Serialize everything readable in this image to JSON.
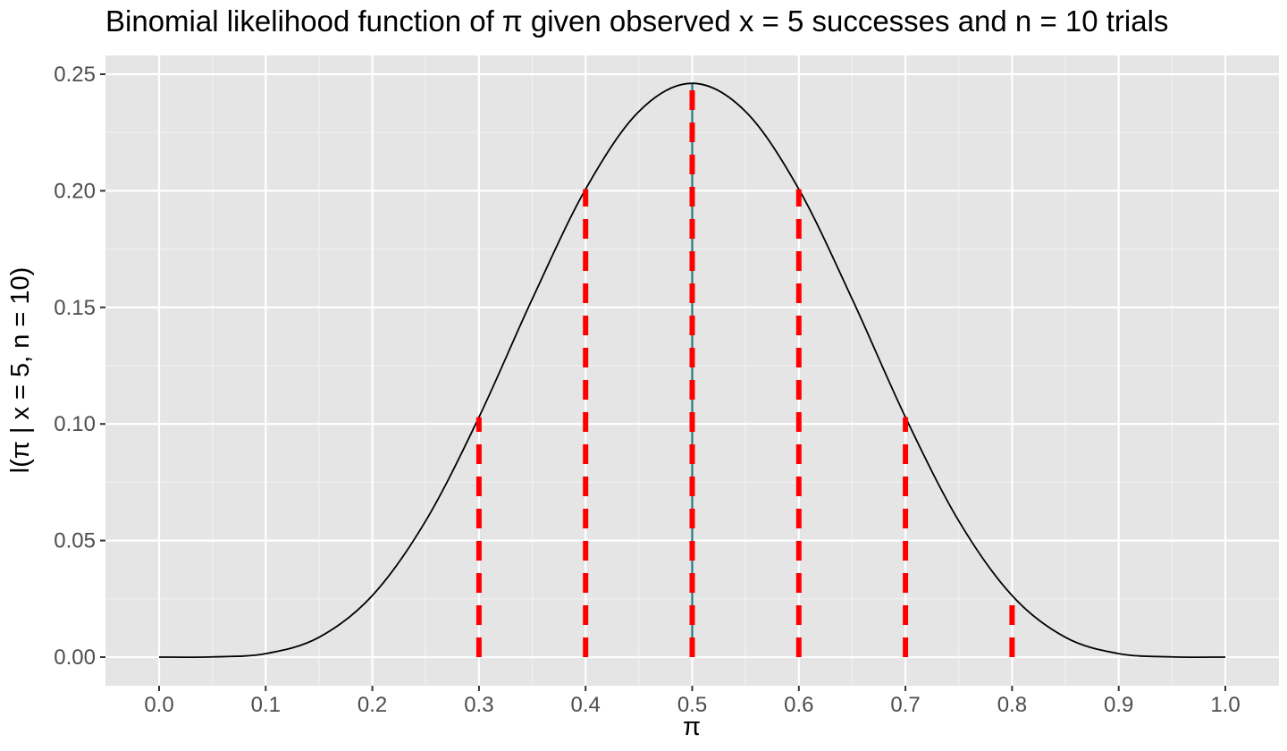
{
  "chart_data": {
    "type": "line",
    "title": "Binomial likelihood function of π given observed x = 5 successes and n = 10 trials",
    "xlabel": "π",
    "ylabel": "l(π | x = 5, n = 10)",
    "xlim": [
      0,
      1
    ],
    "ylim": [
      0,
      0.25
    ],
    "x_ticks": [
      "0.0",
      "0.1",
      "0.2",
      "0.3",
      "0.4",
      "0.5",
      "0.6",
      "0.7",
      "0.8",
      "0.9",
      "1.0"
    ],
    "y_ticks": [
      "0.00",
      "0.05",
      "0.10",
      "0.15",
      "0.20",
      "0.25"
    ],
    "grid": true,
    "series": [
      {
        "color": "#000000",
        "x": [
          0.0,
          0.05,
          0.1,
          0.15,
          0.2,
          0.25,
          0.3,
          0.35,
          0.4,
          0.45,
          0.5,
          0.55,
          0.6,
          0.65,
          0.7,
          0.75,
          0.8,
          0.85,
          0.9,
          0.95,
          1.0
        ],
        "y": [
          0.0,
          0.0001,
          0.0015,
          0.0085,
          0.0264,
          0.0584,
          0.1029,
          0.1536,
          0.2007,
          0.234,
          0.2461,
          0.234,
          0.2007,
          0.1536,
          0.1029,
          0.0584,
          0.0264,
          0.0085,
          0.0015,
          0.0001,
          0.0
        ]
      }
    ],
    "vertical_segments": [
      {
        "x": 0.3,
        "y": 0.1029,
        "color": "#ff0000",
        "style": "dashed"
      },
      {
        "x": 0.4,
        "y": 0.2007,
        "color": "#ff0000",
        "style": "dashed"
      },
      {
        "x": 0.5,
        "y": 0.2461,
        "color": "#ff0000",
        "style": "dashed"
      },
      {
        "x": 0.6,
        "y": 0.2007,
        "color": "#ff0000",
        "style": "dashed"
      },
      {
        "x": 0.7,
        "y": 0.1029,
        "color": "#ff0000",
        "style": "dashed"
      },
      {
        "x": 0.8,
        "y": 0.0264,
        "color": "#ff0000",
        "style": "dashed"
      }
    ],
    "max_marker": {
      "x": 0.5,
      "y": 0.2461,
      "color": "#1f7a80"
    }
  }
}
